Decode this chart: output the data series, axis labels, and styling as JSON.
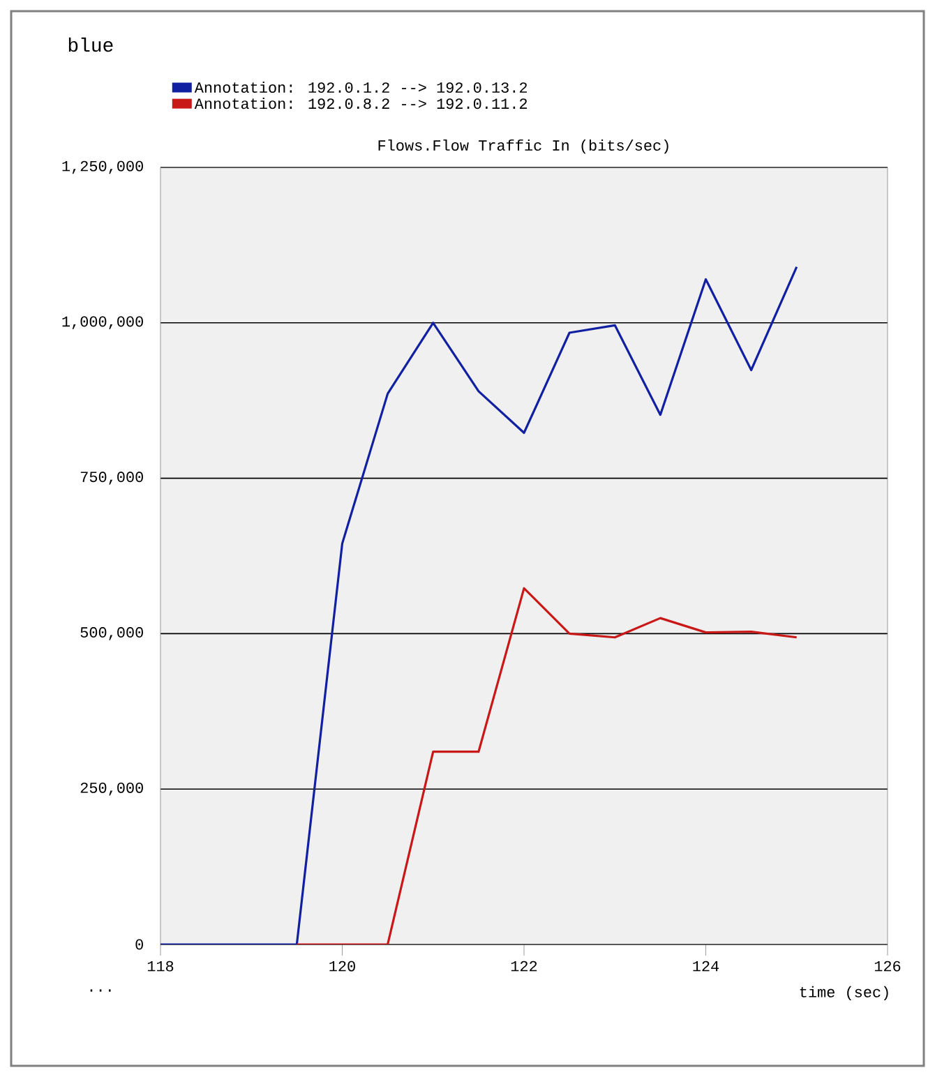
{
  "chart_data": {
    "type": "line",
    "title": "Flows.Flow Traffic In (bits/sec)",
    "xlabel": "time (sec)",
    "annotations": [
      "blue",
      "..."
    ],
    "xlim": [
      118,
      126
    ],
    "ylim": [
      0,
      1250000
    ],
    "xticks": [
      118,
      120,
      122,
      124,
      126
    ],
    "yticks": [
      0,
      {
        "value": 250000,
        "label": "250,000"
      },
      {
        "value": 500000,
        "label": "500,000"
      },
      {
        "value": 750000,
        "label": "750,000"
      },
      {
        "value": 1000000,
        "label": "1,000,000"
      },
      {
        "value": 1250000,
        "label": "1,250,000"
      }
    ],
    "grid": "y",
    "legend": "top left",
    "marker": "none",
    "line_style": "solid",
    "series": [
      {
        "name": "Annotation: 192.0.1.2 --> 192.0.13.2",
        "color": "#1020a0",
        "x": [
          118,
          119.5,
          120,
          120.5,
          121,
          121.5,
          122,
          122.5,
          123,
          123.5,
          124,
          124.5,
          125
        ],
        "values": [
          0,
          0,
          645000,
          886000,
          1000000,
          890000,
          823000,
          984000,
          996000,
          852000,
          1070000,
          924000,
          1090000
        ]
      },
      {
        "name": "Annotation: 192.0.8.2 --> 192.0.11.2",
        "color": "#c81818",
        "x": [
          119.5,
          120.5,
          121,
          121.5,
          122,
          122.5,
          123,
          123.5,
          124,
          124.5,
          125
        ],
        "values": [
          0,
          0,
          310000,
          310000,
          573000,
          500000,
          494000,
          525000,
          502000,
          503000,
          494000
        ]
      }
    ]
  }
}
